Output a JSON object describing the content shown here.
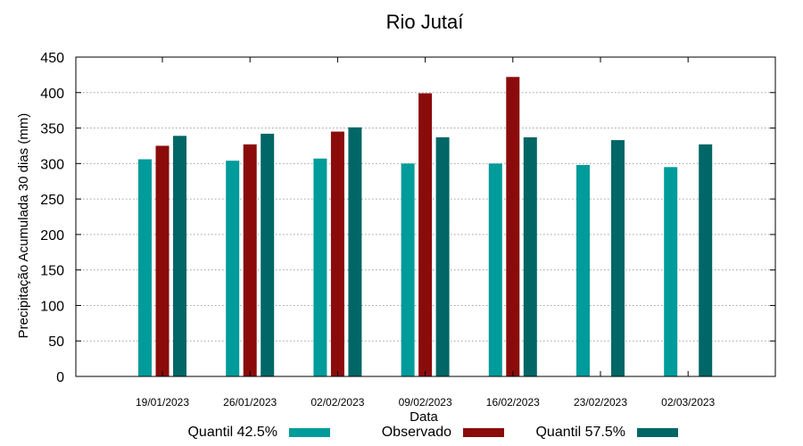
{
  "chart_data": {
    "type": "bar",
    "title": "Rio Jutaí",
    "xlabel": "Data",
    "ylabel": "Precipitação Acumulada 30 dias (mm)",
    "ylim": [
      0,
      450
    ],
    "yticks": [
      0,
      50,
      100,
      150,
      200,
      250,
      300,
      350,
      400,
      450
    ],
    "grid": true,
    "legend_position": "bottom",
    "categories": [
      "19/01/2023",
      "26/01/2023",
      "02/02/2023",
      "09/02/2023",
      "16/02/2023",
      "23/02/2023",
      "02/03/2023"
    ],
    "series": [
      {
        "name": "Quantil 42.5%",
        "color": "#009b9b",
        "values": [
          306,
          304,
          307,
          300,
          300,
          298,
          295
        ]
      },
      {
        "name": "Observado",
        "color": "#8b0b0b",
        "values": [
          325,
          327,
          345,
          399,
          422,
          null,
          null
        ]
      },
      {
        "name": "Quantil 57.5%",
        "color": "#006666",
        "values": [
          339,
          342,
          351,
          337,
          337,
          333,
          327
        ]
      }
    ]
  }
}
